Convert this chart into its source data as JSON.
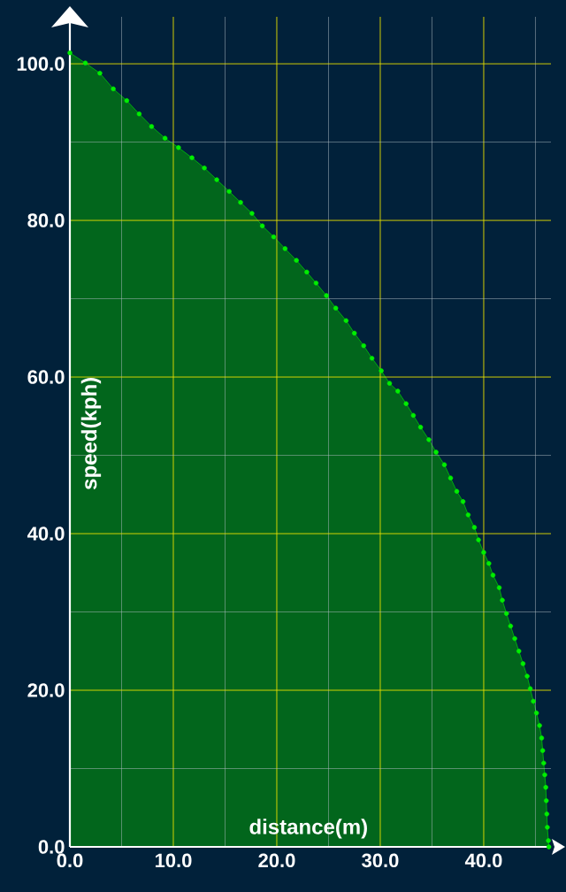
{
  "chart_data": {
    "type": "area",
    "xlabel": "distance(m)",
    "ylabel": "speed(kph)",
    "color": "#00ee00",
    "marker": "circle",
    "grid": true,
    "x": [
      0,
      1.5,
      2.9,
      4.2,
      5.5,
      6.7,
      7.9,
      9.2,
      10.5,
      11.8,
      13.0,
      14.2,
      15.4,
      16.5,
      17.6,
      18.6,
      19.7,
      20.8,
      21.9,
      22.9,
      23.8,
      24.8,
      25.7,
      26.7,
      27.5,
      28.4,
      29.2,
      30.1,
      30.9,
      31.7,
      32.5,
      33.2,
      33.9,
      34.7,
      35.4,
      36.2,
      36.8,
      37.4,
      38.0,
      38.5,
      39.1,
      39.5,
      40.0,
      40.5,
      40.9,
      41.5,
      41.8,
      42.2,
      42.6,
      43.0,
      43.4,
      43.8,
      44.2,
      44.5,
      44.8,
      45.1,
      45.4,
      45.6,
      45.7,
      45.8,
      45.9,
      46.0,
      46.05,
      46.1,
      46.15,
      46.25,
      46.3
    ],
    "values": [
      101.4,
      100.1,
      98.8,
      96.8,
      95.3,
      93.6,
      92.0,
      90.5,
      89.3,
      88.0,
      86.7,
      85.2,
      83.7,
      82.3,
      80.9,
      79.3,
      77.9,
      76.4,
      74.9,
      73.4,
      72.0,
      70.4,
      68.8,
      67.2,
      65.6,
      64.0,
      62.4,
      60.8,
      59.2,
      58.2,
      56.6,
      55.1,
      53.6,
      52.0,
      50.4,
      48.8,
      47.1,
      45.4,
      44.1,
      42.4,
      40.8,
      39.2,
      37.6,
      36.2,
      34.7,
      33.1,
      31.5,
      29.8,
      28.2,
      26.6,
      25.0,
      23.4,
      21.8,
      20.2,
      18.6,
      17.1,
      15.5,
      13.9,
      12.3,
      10.7,
      9.2,
      7.6,
      5.9,
      4.2,
      2.5,
      0.8,
      0
    ],
    "xlim": [
      0,
      46.5
    ],
    "ylim": [
      0,
      106
    ],
    "xticks": [
      {
        "value": 0,
        "label": "0.0"
      },
      {
        "value": 5,
        "label": null
      },
      {
        "value": 10,
        "label": "10.0"
      },
      {
        "value": 15,
        "label": null
      },
      {
        "value": 20,
        "label": "20.0"
      },
      {
        "value": 25,
        "label": null
      },
      {
        "value": 30,
        "label": "30.0"
      },
      {
        "value": 35,
        "label": null
      },
      {
        "value": 40,
        "label": "40.0"
      },
      {
        "value": 45,
        "label": null
      }
    ],
    "yticks": [
      {
        "value": 0,
        "label": "0.0"
      },
      {
        "value": 10,
        "label": null
      },
      {
        "value": 20,
        "label": "20.0"
      },
      {
        "value": 30,
        "label": null
      },
      {
        "value": 40,
        "label": "40.0"
      },
      {
        "value": 50,
        "label": null
      },
      {
        "value": 60,
        "label": "60.0"
      },
      {
        "value": 70,
        "label": null
      },
      {
        "value": 80,
        "label": "80.0"
      },
      {
        "value": 90,
        "label": null
      },
      {
        "value": 100,
        "label": "100.0"
      }
    ]
  }
}
